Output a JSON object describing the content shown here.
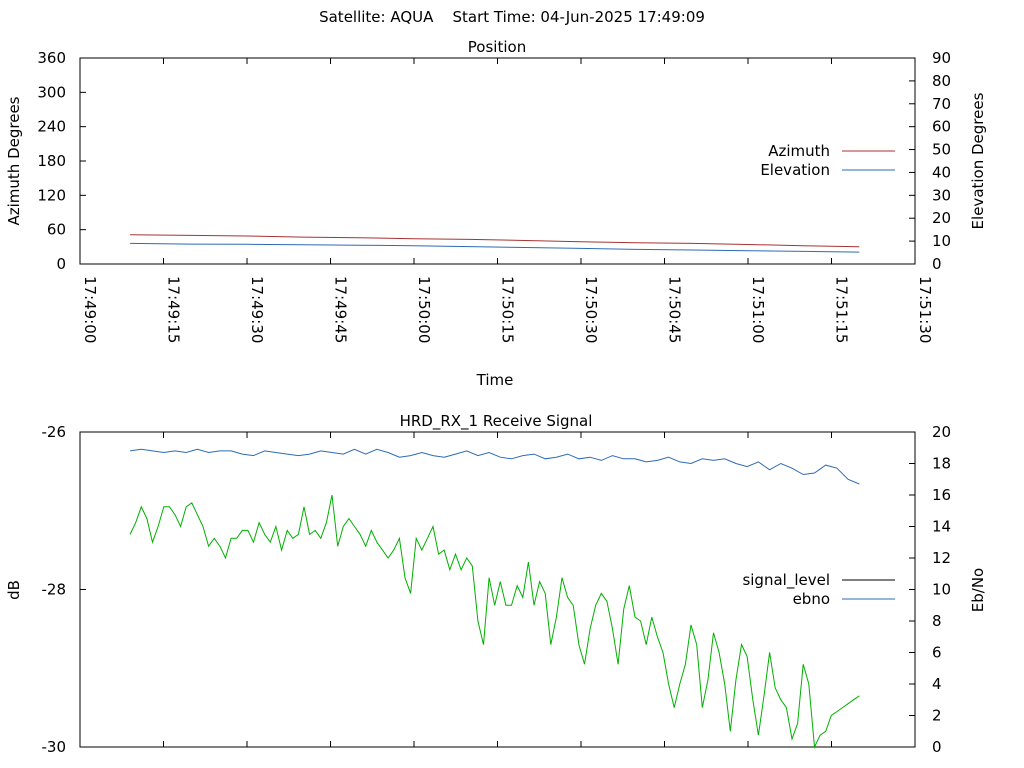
{
  "header": {
    "title": "Satellite: AQUA    Start Time: 04-Jun-2025 17:49:09"
  },
  "colors": {
    "azimuth": "#a83232",
    "elevation": "#2e6bb5",
    "signal_level": "#000000",
    "ebno": "#2e6bb5",
    "signal_trace": "#00b000"
  },
  "chart_data": [
    {
      "type": "line",
      "title": "Position",
      "xlabel": "Time",
      "ylabel": "Azimuth Degrees",
      "y2label": "Elevation Degrees",
      "xlim": [
        "17:49:00",
        "17:51:30"
      ],
      "ylim": [
        0,
        360
      ],
      "y2lim": [
        0,
        90
      ],
      "x_ticks": [
        "17:49:00",
        "17:49:15",
        "17:49:30",
        "17:49:45",
        "17:50:00",
        "17:50:15",
        "17:50:30",
        "17:50:45",
        "17:51:00",
        "17:51:15",
        "17:51:30"
      ],
      "y_ticks": [
        "0",
        "60",
        "120",
        "180",
        "240",
        "300",
        "360"
      ],
      "y2_ticks": [
        "0",
        "10",
        "20",
        "30",
        "40",
        "50",
        "60",
        "70",
        "80",
        "90"
      ],
      "legend_position": "right",
      "series": [
        {
          "name": "Azimuth",
          "axis": "y",
          "x": [
            "17:49:09",
            "17:49:20",
            "17:49:30",
            "17:49:40",
            "17:49:50",
            "17:50:00",
            "17:50:10",
            "17:50:20",
            "17:50:30",
            "17:50:40",
            "17:50:50",
            "17:51:00",
            "17:51:10",
            "17:51:20"
          ],
          "y": [
            51,
            50,
            49,
            47,
            46,
            44,
            43,
            41,
            39,
            37,
            36,
            34,
            32,
            30
          ]
        },
        {
          "name": "Elevation",
          "axis": "y2",
          "x": [
            "17:49:09",
            "17:49:20",
            "17:49:30",
            "17:49:40",
            "17:49:50",
            "17:50:00",
            "17:50:10",
            "17:50:20",
            "17:50:30",
            "17:50:40",
            "17:50:50",
            "17:51:00",
            "17:51:10",
            "17:51:20"
          ],
          "y": [
            9,
            8.7,
            8.6,
            8.4,
            8.2,
            8,
            7.6,
            7.2,
            6.8,
            6.4,
            6.1,
            5.8,
            5.5,
            5.2
          ]
        }
      ]
    },
    {
      "type": "line",
      "title": "HRD_RX_1 Receive Signal",
      "ylabel": "dB",
      "y2label": "Eb/No",
      "ylim": [
        -30,
        -26
      ],
      "y2lim": [
        0,
        20
      ],
      "y_ticks": [
        "-26",
        "-28",
        "-30"
      ],
      "y2_ticks": [
        "0",
        "2",
        "4",
        "6",
        "8",
        "10",
        "12",
        "14",
        "16",
        "18",
        "20"
      ],
      "legend_position": "right",
      "legend": [
        "signal_level",
        "ebno"
      ],
      "series": [
        {
          "name": "ebno",
          "axis": "y2",
          "x": [
            0,
            2,
            4,
            6,
            8,
            10,
            12,
            14,
            16,
            18,
            20,
            22,
            24,
            26,
            28,
            30,
            32,
            34,
            36,
            38,
            40,
            42,
            44,
            46,
            48,
            50,
            52,
            54,
            56,
            58,
            60,
            62,
            64,
            66,
            68,
            70,
            72,
            74,
            76,
            78,
            80,
            82,
            84,
            86,
            88,
            90,
            92,
            94,
            96,
            98,
            100,
            102,
            104,
            106,
            108,
            110,
            112,
            114,
            116,
            118,
            120,
            122,
            124,
            126,
            128,
            130
          ],
          "y": [
            18.8,
            18.9,
            18.8,
            18.7,
            18.8,
            18.7,
            18.9,
            18.7,
            18.8,
            18.8,
            18.6,
            18.5,
            18.8,
            18.7,
            18.6,
            18.5,
            18.6,
            18.8,
            18.7,
            18.6,
            18.9,
            18.6,
            18.9,
            18.7,
            18.4,
            18.5,
            18.7,
            18.5,
            18.4,
            18.6,
            18.8,
            18.5,
            18.7,
            18.4,
            18.3,
            18.5,
            18.6,
            18.3,
            18.4,
            18.6,
            18.3,
            18.4,
            18.2,
            18.5,
            18.3,
            18.3,
            18.1,
            18.2,
            18.4,
            18.1,
            18.0,
            18.3,
            18.2,
            18.3,
            18.0,
            17.8,
            18.1,
            17.6,
            18.0,
            17.7,
            17.3,
            17.4,
            17.9,
            17.7,
            17.0,
            16.7
          ]
        },
        {
          "name": "",
          "axis": "y",
          "x": [
            0,
            1,
            2,
            3,
            4,
            5,
            6,
            7,
            8,
            9,
            10,
            11,
            12,
            13,
            14,
            15,
            16,
            17,
            18,
            19,
            20,
            21,
            22,
            23,
            24,
            25,
            26,
            27,
            28,
            29,
            30,
            31,
            32,
            33,
            34,
            35,
            36,
            37,
            38,
            39,
            40,
            41,
            42,
            43,
            44,
            45,
            46,
            47,
            48,
            49,
            50,
            51,
            52,
            53,
            54,
            55,
            56,
            57,
            58,
            59,
            60,
            61,
            62,
            63,
            64,
            65,
            66,
            67,
            68,
            69,
            70,
            71,
            72,
            73,
            74,
            75,
            76,
            77,
            78,
            79,
            80,
            81,
            82,
            83,
            84,
            85,
            86,
            87,
            88,
            89,
            90,
            91,
            92,
            93,
            94,
            95,
            96,
            97,
            98,
            99,
            100,
            101,
            102,
            103,
            104,
            105,
            106,
            107,
            108,
            109,
            110,
            111,
            112,
            113,
            114,
            115,
            116,
            117,
            118,
            119,
            120,
            121,
            122,
            123,
            124,
            125,
            126,
            127,
            128,
            129,
            130
          ],
          "y": [
            -27.3,
            -27.15,
            -26.95,
            -27.1,
            -27.4,
            -27.2,
            -26.95,
            -26.95,
            -27.05,
            -27.2,
            -26.95,
            -26.9,
            -27.05,
            -27.2,
            -27.45,
            -27.35,
            -27.45,
            -27.6,
            -27.35,
            -27.35,
            -27.25,
            -27.25,
            -27.4,
            -27.15,
            -27.3,
            -27.4,
            -27.2,
            -27.5,
            -27.25,
            -27.35,
            -27.3,
            -26.95,
            -27.3,
            -27.25,
            -27.35,
            -27.15,
            -26.8,
            -27.45,
            -27.2,
            -27.1,
            -27.2,
            -27.3,
            -27.45,
            -27.25,
            -27.4,
            -27.5,
            -27.6,
            -27.5,
            -27.35,
            -27.85,
            -28.05,
            -27.35,
            -27.5,
            -27.35,
            -27.2,
            -27.55,
            -27.5,
            -27.75,
            -27.55,
            -27.75,
            -27.6,
            -27.7,
            -28.4,
            -28.7,
            -27.85,
            -28.2,
            -27.9,
            -28.2,
            -28.2,
            -27.95,
            -28.1,
            -27.65,
            -28.2,
            -27.9,
            -28.05,
            -28.7,
            -28.35,
            -27.85,
            -28.1,
            -28.2,
            -28.7,
            -28.95,
            -28.5,
            -28.2,
            -28.05,
            -28.15,
            -28.5,
            -28.95,
            -28.25,
            -27.95,
            -28.35,
            -28.4,
            -28.7,
            -28.35,
            -28.6,
            -28.8,
            -29.2,
            -29.5,
            -29.2,
            -28.95,
            -28.45,
            -28.7,
            -29.5,
            -29.15,
            -28.55,
            -28.8,
            -29.2,
            -29.8,
            -29.15,
            -28.7,
            -28.85,
            -29.4,
            -29.85,
            -29.35,
            -28.8,
            -29.25,
            -29.4,
            -29.5,
            -29.9,
            -29.7,
            -28.95,
            -29.2,
            -30.0,
            -29.85,
            -29.8,
            -29.6,
            -29.55,
            -29.5,
            -29.45,
            -29.4,
            -29.35
          ]
        }
      ]
    }
  ]
}
